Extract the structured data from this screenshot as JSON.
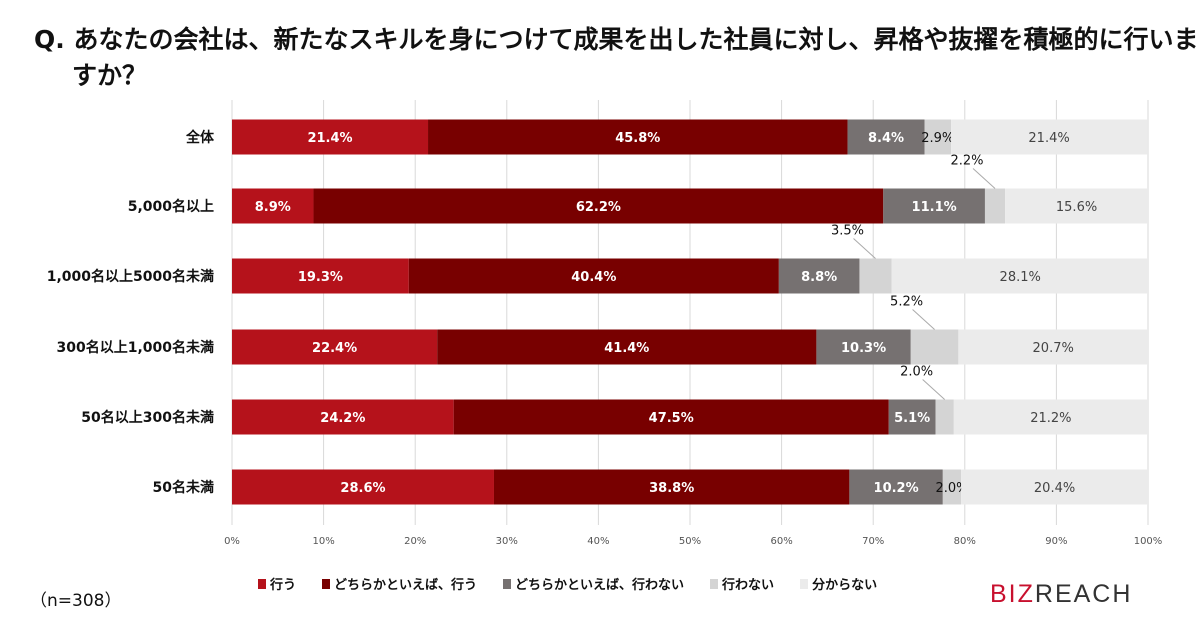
{
  "title": "Q. あなたの会社は、新たなスキルを身につけて成果を出した社員に対し、昇格や抜擢を積極的に行いますか？",
  "sample": "（n=308）",
  "logo": "BIZREACH",
  "chart_data": {
    "type": "bar",
    "orientation": "horizontal",
    "stacked": true,
    "categories": [
      "全体",
      "5,000名以上",
      "1,000名以上5000名未満",
      "300名以上1,000名未満",
      "50名以上300名未満",
      "50名未満"
    ],
    "series": [
      {
        "name": "行う",
        "color": "#b5121b",
        "values": [
          21.4,
          8.9,
          19.3,
          22.4,
          24.2,
          28.6
        ]
      },
      {
        "name": "どちらかといえば、行う",
        "color": "#780000",
        "values": [
          45.8,
          62.2,
          40.4,
          41.4,
          47.5,
          38.8
        ]
      },
      {
        "name": "どちらかといえば、行わない",
        "color": "#767171",
        "values": [
          8.4,
          11.1,
          8.8,
          10.3,
          5.1,
          10.2
        ]
      },
      {
        "name": "行わない",
        "color": "#d4d4d4",
        "values": [
          2.9,
          2.2,
          3.5,
          5.2,
          2.0,
          2.0
        ]
      },
      {
        "name": "分からない",
        "color": "#ebebeb",
        "values": [
          21.4,
          15.6,
          28.1,
          20.7,
          21.2,
          20.4
        ]
      }
    ],
    "xlim": [
      0,
      100
    ],
    "xticks": [
      "0%",
      "10%",
      "20%",
      "30%",
      "40%",
      "50%",
      "60%",
      "70%",
      "80%",
      "90%",
      "100%"
    ],
    "grid": true,
    "legend": "bottom"
  }
}
